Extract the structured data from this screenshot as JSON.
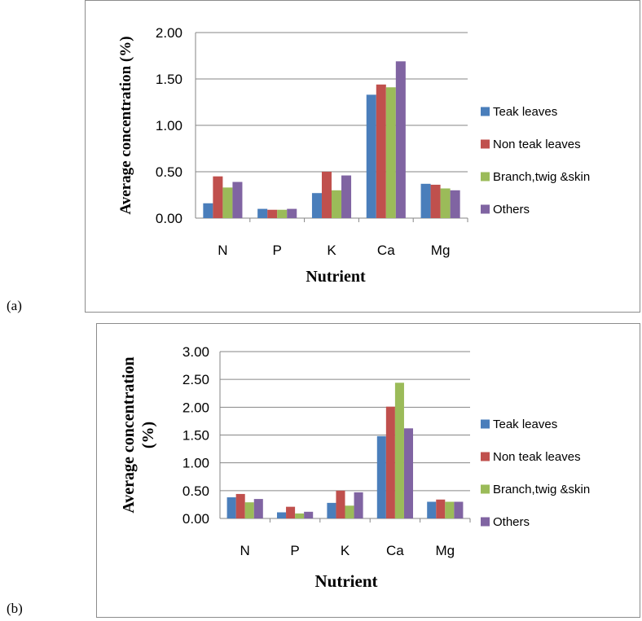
{
  "panels": [
    {
      "letter": "(a)"
    },
    {
      "letter": "(b)"
    }
  ],
  "legend_colors": [
    "#4a7ebb",
    "#c0504d",
    "#9bbb59",
    "#8064a2"
  ],
  "chart_data": [
    {
      "type": "bar",
      "categories": [
        "N",
        "P",
        "K",
        "Ca",
        "Mg"
      ],
      "series": [
        {
          "name": "Teak leaves",
          "values": [
            0.16,
            0.1,
            0.27,
            1.33,
            0.37
          ]
        },
        {
          "name": "Non teak leaves",
          "values": [
            0.45,
            0.09,
            0.5,
            1.44,
            0.36
          ]
        },
        {
          "name": "Branch,twig &skin",
          "values": [
            0.33,
            0.09,
            0.3,
            1.41,
            0.32
          ]
        },
        {
          "name": "Others",
          "values": [
            0.39,
            0.1,
            0.46,
            1.69,
            0.3
          ]
        }
      ],
      "xlabel": "Nutrient",
      "ylabel": "Average concentration (%)",
      "ylim": [
        0,
        2.0
      ],
      "yticks": [
        "0.00",
        "0.50",
        "1.00",
        "1.50",
        "2.00"
      ],
      "grid": true,
      "legend_position": "right"
    },
    {
      "type": "bar",
      "categories": [
        "N",
        "P",
        "K",
        "Ca",
        "Mg"
      ],
      "series": [
        {
          "name": "Teak leaves",
          "values": [
            0.38,
            0.11,
            0.28,
            1.48,
            0.3
          ]
        },
        {
          "name": "Non teak leaves",
          "values": [
            0.44,
            0.21,
            0.5,
            2.01,
            0.34
          ]
        },
        {
          "name": "Branch,twig &skin",
          "values": [
            0.29,
            0.09,
            0.23,
            2.44,
            0.3
          ]
        },
        {
          "name": "Others",
          "values": [
            0.35,
            0.12,
            0.47,
            1.62,
            0.3
          ]
        }
      ],
      "xlabel": "Nutrient",
      "ylabel_lines": [
        "Average concentration",
        "(%)"
      ],
      "ylim": [
        0,
        3.0
      ],
      "yticks": [
        "0.00",
        "0.50",
        "1.00",
        "1.50",
        "2.00",
        "2.50",
        "3.00"
      ],
      "grid": true,
      "legend_position": "right"
    }
  ]
}
